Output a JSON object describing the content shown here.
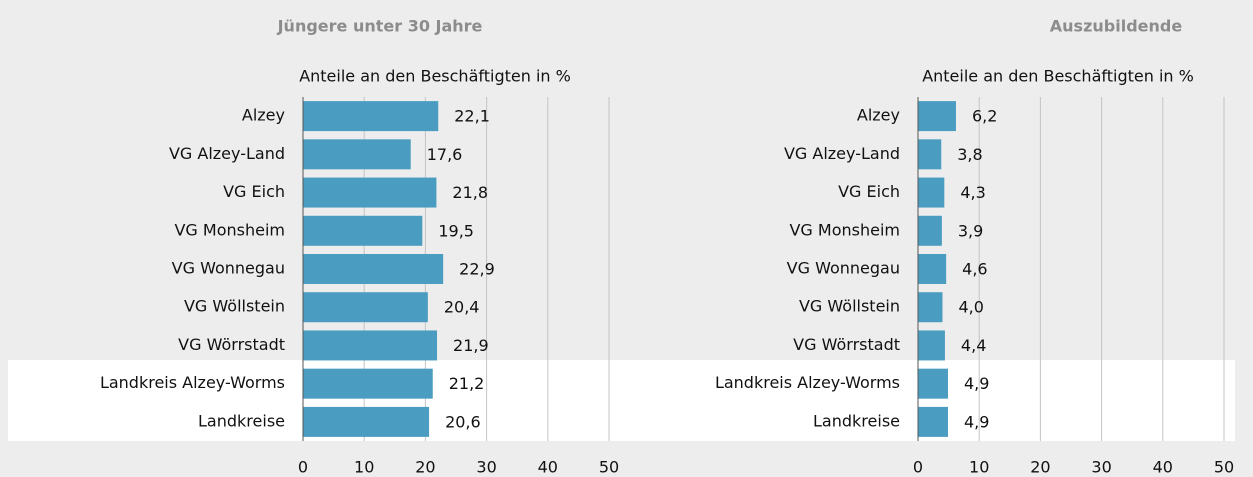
{
  "chart_data": [
    {
      "type": "bar",
      "orientation": "horizontal",
      "title": "Jüngere unter 30 Jahre",
      "subtitle": "Anteile an den Beschäftigten in %",
      "categories": [
        "Alzey",
        "VG Alzey-Land",
        "VG Eich",
        "VG Monsheim",
        "VG Wonnegau",
        "VG Wöllstein",
        "VG Wörrstadt",
        "Landkreis Alzey-Worms",
        "Landkreise"
      ],
      "values": [
        22.1,
        17.6,
        21.8,
        19.5,
        22.9,
        20.4,
        21.9,
        21.2,
        20.6
      ],
      "value_labels": [
        "22,1",
        "17,6",
        "21,8",
        "19,5",
        "22,9",
        "20,4",
        "21,9",
        "21,2",
        "20,6"
      ],
      "color": "#4a9dc0",
      "xlim": [
        0,
        50
      ],
      "xticks": [
        0,
        10,
        20,
        30,
        40,
        50
      ],
      "grid": true
    },
    {
      "type": "bar",
      "orientation": "horizontal",
      "title": "Auszubildende",
      "subtitle": "Anteile an den Beschäftigten in %",
      "categories": [
        "Alzey",
        "VG Alzey-Land",
        "VG Eich",
        "VG Monsheim",
        "VG Wonnegau",
        "VG Wöllstein",
        "VG Wörrstadt",
        "Landkreis Alzey-Worms",
        "Landkreise"
      ],
      "values": [
        6.2,
        3.8,
        4.3,
        3.9,
        4.6,
        4.0,
        4.4,
        4.9,
        4.9
      ],
      "value_labels": [
        "6,2",
        "3,8",
        "4,3",
        "3,9",
        "4,6",
        "4,0",
        "4,4",
        "4,9",
        "4,9"
      ],
      "color": "#4a9dc0",
      "xlim": [
        0,
        50
      ],
      "xticks": [
        0,
        10,
        20,
        30,
        40,
        50
      ],
      "grid": true
    }
  ]
}
